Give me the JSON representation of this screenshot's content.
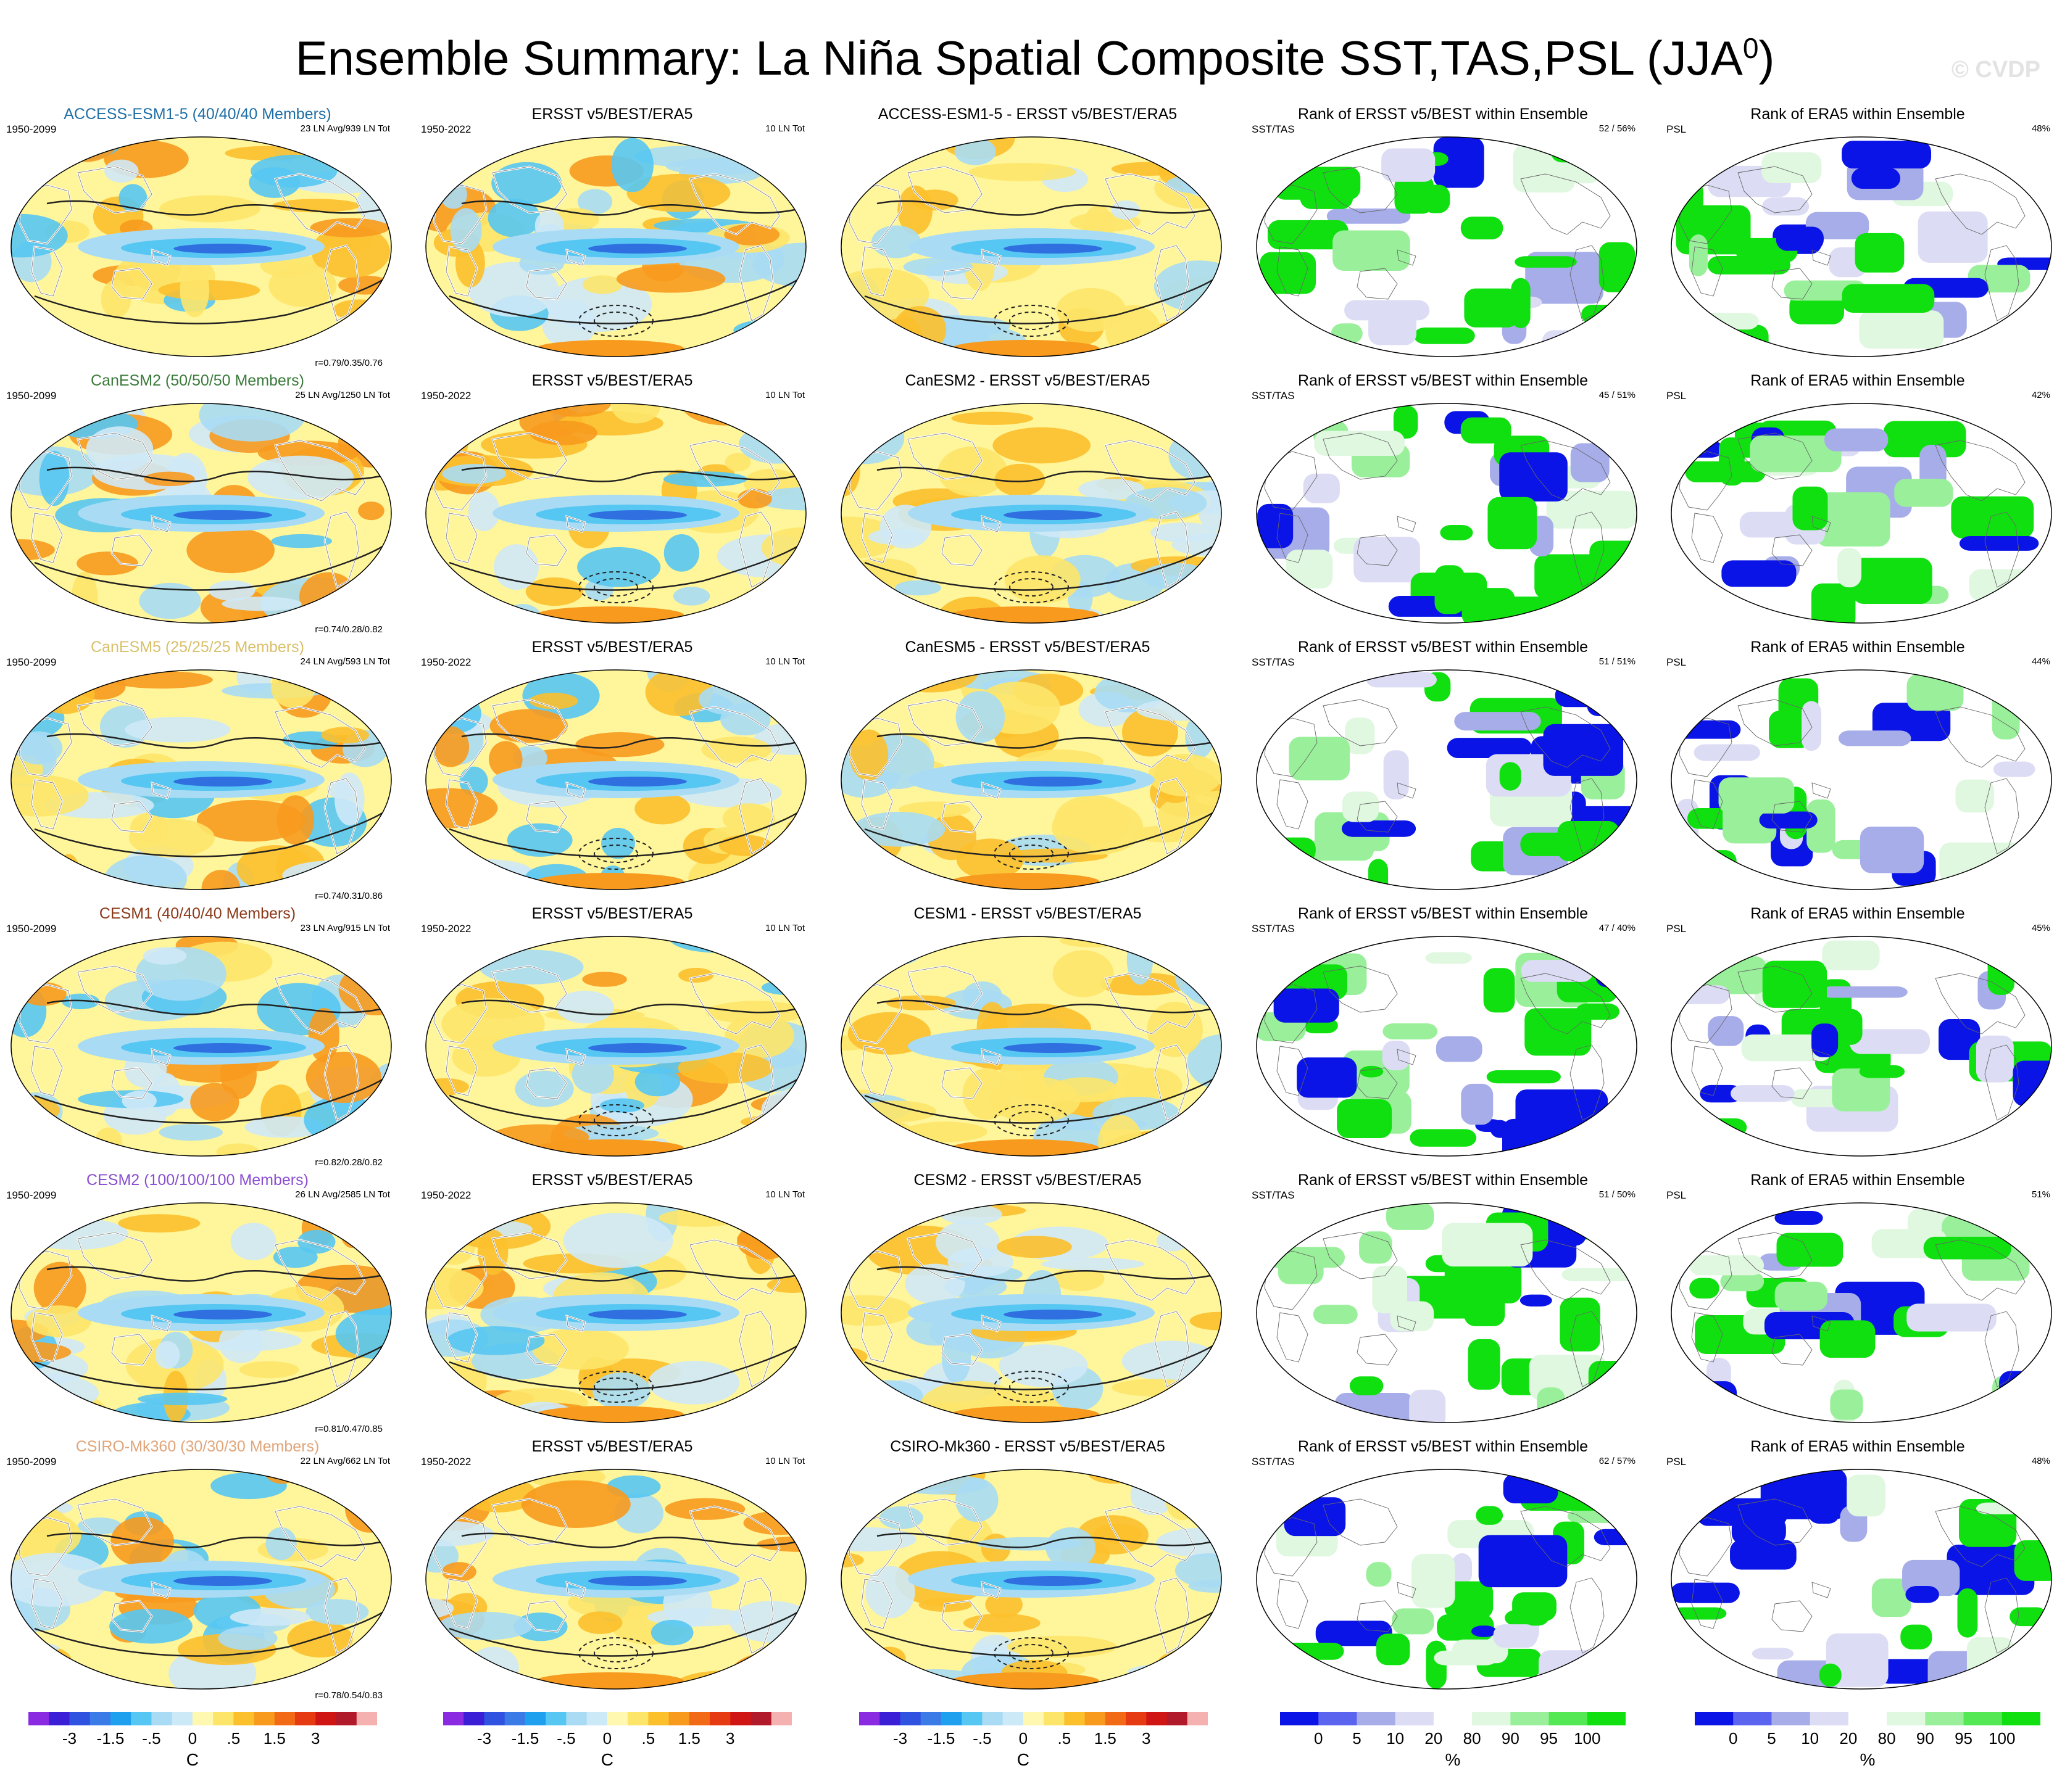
{
  "title": "Ensemble Summary: La Niña Spatial Composite SST,TAS,PSL (JJA",
  "title_sup": "0",
  "title_close": ")",
  "watermark": "© CVDP",
  "rows": [
    {
      "model_title": "ACCESS-ESM1-5 (40/40/40 Members)",
      "model_color": "#1f6fa6",
      "model_period": "1950-2099",
      "model_stats": "23 LN Avg/939 LN Tot",
      "model_corr": "r=0.79/0.35/0.76",
      "obs_title": "ERSST v5/BEST/ERA5",
      "obs_period": "1950-2022",
      "obs_stats": "10 LN Tot",
      "diff_title": "ACCESS-ESM1-5 - ERSST v5/BEST/ERA5",
      "rank1_title": "Rank of ERSST v5/BEST within Ensemble",
      "rank1_label": "SST/TAS",
      "rank1_pct": "52 /  56%",
      "rank2_title": "Rank of ERA5 within Ensemble",
      "rank2_label": "PSL",
      "rank2_pct": "48%"
    },
    {
      "model_title": "CanESM2 (50/50/50 Members)",
      "model_color": "#3a7a3a",
      "model_period": "1950-2099",
      "model_stats": "25 LN Avg/1250 LN Tot",
      "model_corr": "r=0.74/0.28/0.82",
      "obs_title": "ERSST v5/BEST/ERA5",
      "obs_period": "1950-2022",
      "obs_stats": "10 LN Tot",
      "diff_title": "CanESM2 - ERSST v5/BEST/ERA5",
      "rank1_title": "Rank of ERSST v5/BEST within Ensemble",
      "rank1_label": "SST/TAS",
      "rank1_pct": "45 /  51%",
      "rank2_title": "Rank of ERA5 within Ensemble",
      "rank2_label": "PSL",
      "rank2_pct": "42%"
    },
    {
      "model_title": "CanESM5 (25/25/25 Members)",
      "model_color": "#d9c06a",
      "model_period": "1950-2099",
      "model_stats": "24 LN Avg/593 LN Tot",
      "model_corr": "r=0.74/0.31/0.86",
      "obs_title": "ERSST v5/BEST/ERA5",
      "obs_period": "1950-2022",
      "obs_stats": "10 LN Tot",
      "diff_title": "CanESM5 - ERSST v5/BEST/ERA5",
      "rank1_title": "Rank of ERSST v5/BEST within Ensemble",
      "rank1_label": "SST/TAS",
      "rank1_pct": "51 /  51%",
      "rank2_title": "Rank of ERA5 within Ensemble",
      "rank2_label": "PSL",
      "rank2_pct": "44%"
    },
    {
      "model_title": "CESM1 (40/40/40 Members)",
      "model_color": "#8b3a1a",
      "model_period": "1950-2099",
      "model_stats": "23 LN Avg/915 LN Tot",
      "model_corr": "r=0.82/0.28/0.82",
      "obs_title": "ERSST v5/BEST/ERA5",
      "obs_period": "1950-2022",
      "obs_stats": "10 LN Tot",
      "diff_title": "CESM1 - ERSST v5/BEST/ERA5",
      "rank1_title": "Rank of ERSST v5/BEST within Ensemble",
      "rank1_label": "SST/TAS",
      "rank1_pct": "47 /  40%",
      "rank2_title": "Rank of ERA5 within Ensemble",
      "rank2_label": "PSL",
      "rank2_pct": "45%"
    },
    {
      "model_title": "CESM2 (100/100/100 Members)",
      "model_color": "#8a4fd1",
      "model_period": "1950-2099",
      "model_stats": "26 LN Avg/2585 LN Tot",
      "model_corr": "r=0.81/0.47/0.85",
      "obs_title": "ERSST v5/BEST/ERA5",
      "obs_period": "1950-2022",
      "obs_stats": "10 LN Tot",
      "diff_title": "CESM2 - ERSST v5/BEST/ERA5",
      "rank1_title": "Rank of ERSST v5/BEST within Ensemble",
      "rank1_label": "SST/TAS",
      "rank1_pct": "51 /  50%",
      "rank2_title": "Rank of ERA5 within Ensemble",
      "rank2_label": "PSL",
      "rank2_pct": "51%"
    },
    {
      "model_title": "CSIRO-Mk360 (30/30/30 Members)",
      "model_color": "#e0a57a",
      "model_period": "1950-2099",
      "model_stats": "22 LN Avg/662 LN Tot",
      "model_corr": "r=0.78/0.54/0.83",
      "obs_title": "ERSST v5/BEST/ERA5",
      "obs_period": "1950-2022",
      "obs_stats": "10 LN Tot",
      "diff_title": "CSIRO-Mk360 - ERSST v5/BEST/ERA5",
      "rank1_title": "Rank of ERSST v5/BEST within Ensemble",
      "rank1_label": "SST/TAS",
      "rank1_pct": "62 /  57%",
      "rank2_title": "Rank of ERA5 within Ensemble",
      "rank2_label": "PSL",
      "rank2_pct": "48%"
    }
  ],
  "colorbars": {
    "temp": {
      "colors": [
        "#8a2be2",
        "#3b1fd6",
        "#2f52e0",
        "#3b7be8",
        "#1ea0ee",
        "#56c6f2",
        "#a9dcf4",
        "#cce9f7",
        "#fff8b0",
        "#fde56a",
        "#fcc02c",
        "#f79a1e",
        "#f26a15",
        "#e63a12",
        "#d01515",
        "#b01a2a",
        "#f5b0b0"
      ],
      "ticks": [
        "-3",
        "-1.5",
        "-.5",
        "0",
        ".5",
        "1.5",
        "3"
      ],
      "unit": "C"
    },
    "rank": {
      "colors": [
        "#0a14e6",
        "#5a64ee",
        "#a7ade8",
        "#dcdcf5",
        "#ffffff",
        "#e0f7e0",
        "#9af09a",
        "#55e855",
        "#10e010"
      ],
      "ticks": [
        "0",
        "5",
        "10",
        "20",
        "80",
        "90",
        "95",
        "100"
      ],
      "unit": "%"
    }
  },
  "chart_data": {
    "type": "heatmap",
    "title": "Ensemble Summary: La Niña Spatial Composite SST,TAS,PSL (JJA0)",
    "panels_per_row": [
      "model composite",
      "observed composite",
      "model minus observed",
      "rank SST/TAS",
      "rank PSL"
    ],
    "models": [
      "ACCESS-ESM1-5",
      "CanESM2",
      "CanESM5",
      "CESM1",
      "CESM2",
      "CSIRO-Mk360"
    ],
    "members": [
      "40/40/40",
      "50/50/50",
      "25/25/25",
      "40/40/40",
      "100/100/100",
      "30/30/30"
    ],
    "ln_avg": [
      23,
      25,
      24,
      23,
      26,
      22
    ],
    "ln_total": [
      939,
      1250,
      593,
      915,
      2585,
      662
    ],
    "pattern_corr_sst_tas_psl": [
      [
        0.79,
        0.35,
        0.76
      ],
      [
        0.74,
        0.28,
        0.82
      ],
      [
        0.74,
        0.31,
        0.86
      ],
      [
        0.82,
        0.28,
        0.82
      ],
      [
        0.81,
        0.47,
        0.85
      ],
      [
        0.78,
        0.54,
        0.83
      ]
    ],
    "rank_sst_tas_pct": [
      [
        52,
        56
      ],
      [
        45,
        51
      ],
      [
        51,
        51
      ],
      [
        47,
        40
      ],
      [
        51,
        50
      ],
      [
        62,
        57
      ]
    ],
    "rank_psl_pct": [
      48,
      42,
      44,
      45,
      51,
      48
    ],
    "temp_colorbar_ticks_C": [
      -3,
      -1.5,
      -0.5,
      0,
      0.5,
      1.5,
      3
    ],
    "rank_colorbar_ticks_pct": [
      0,
      5,
      10,
      20,
      80,
      90,
      95,
      100
    ]
  }
}
